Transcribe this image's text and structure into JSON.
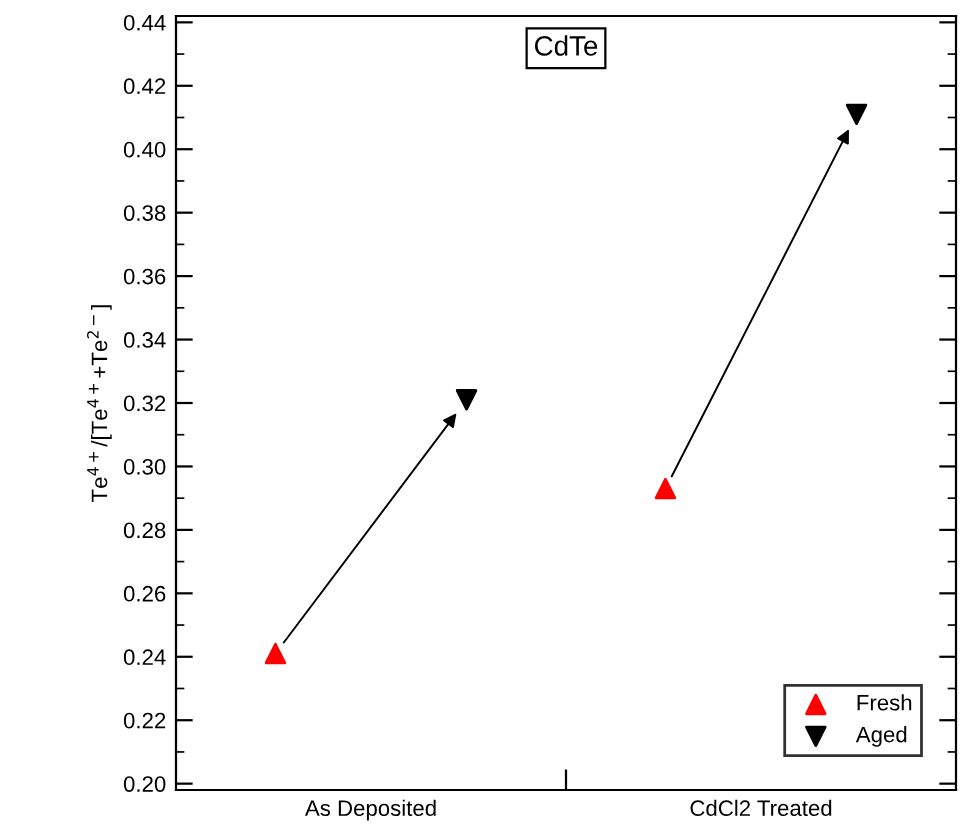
{
  "chart_data": {
    "type": "scatter",
    "title": "CdTe",
    "ylabel": "Te$^{4+}$/[Te$^{4+}$+Te$^{2−}$]",
    "categories": [
      "As Deposited",
      "CdCl2 Treated"
    ],
    "series": [
      {
        "name": "Fresh",
        "color": "#ff0000",
        "marker": "triangle",
        "values": [
          0.241,
          0.293
        ]
      },
      {
        "name": "Aged",
        "color": "#000000",
        "marker": "triangle_down",
        "values": [
          0.321,
          0.411
        ]
      }
    ],
    "ylim": [
      0.198,
      0.442
    ],
    "yticks": [
      {
        "value": 0.2,
        "label": "0.20"
      },
      {
        "value": 0.22,
        "label": "0.22"
      },
      {
        "value": 0.24,
        "label": "0.24"
      },
      {
        "value": 0.26,
        "label": "0.26"
      },
      {
        "value": 0.28,
        "label": "0.28"
      },
      {
        "value": 0.3,
        "label": "0.30"
      },
      {
        "value": 0.32,
        "label": "0.32"
      },
      {
        "value": 0.34,
        "label": "0.34"
      },
      {
        "value": 0.36,
        "label": "0.36"
      },
      {
        "value": 0.38,
        "label": "0.38"
      },
      {
        "value": 0.4,
        "label": "0.40"
      },
      {
        "value": 0.42,
        "label": "0.42"
      },
      {
        "value": 0.44,
        "label": "0.44"
      }
    ],
    "grid": false,
    "legend": "bottom right"
  }
}
